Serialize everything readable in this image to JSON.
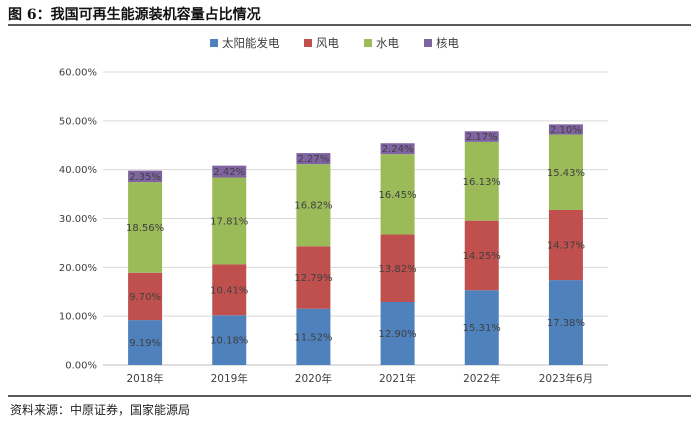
{
  "figure_title": "图 6：我国可再生能源装机容量占比情况",
  "source_note": "资料来源：中原证券，国家能源局",
  "colors": {
    "solar": "#4f81bd",
    "wind": "#c0504d",
    "hydro": "#9bbb59",
    "nuclear": "#8064a2"
  },
  "chart_data": {
    "type": "bar",
    "stacked": true,
    "title": "",
    "xlabel": "",
    "ylabel": "",
    "ylim": [
      0,
      60
    ],
    "yticks": [
      0,
      10,
      20,
      30,
      40,
      50,
      60
    ],
    "ytick_labels": [
      "0.00%",
      "10.00%",
      "20.00%",
      "30.00%",
      "40.00%",
      "50.00%",
      "60.00%"
    ],
    "grid": true,
    "legend_position": "top-center",
    "categories": [
      "2018年",
      "2019年",
      "2020年",
      "2021年",
      "2022年",
      "2023年6月"
    ],
    "series": [
      {
        "key": "solar",
        "name": "太阳能发电",
        "values": [
          9.19,
          10.18,
          11.52,
          12.9,
          15.31,
          17.38
        ],
        "labels": [
          "9.19%",
          "10.18%",
          "11.52%",
          "12.90%",
          "15.31%",
          "17.38%"
        ]
      },
      {
        "key": "wind",
        "name": "风电",
        "values": [
          9.7,
          10.41,
          12.79,
          13.82,
          14.25,
          14.37
        ],
        "labels": [
          "9.70%",
          "10.41%",
          "12.79%",
          "13.82%",
          "14.25%",
          "14.37%"
        ]
      },
      {
        "key": "hydro",
        "name": "水电",
        "values": [
          18.56,
          17.81,
          16.82,
          16.45,
          16.13,
          15.43
        ],
        "labels": [
          "18.56%",
          "17.81%",
          "16.82%",
          "16.45%",
          "16.13%",
          "15.43%"
        ]
      },
      {
        "key": "nuclear",
        "name": "核电",
        "values": [
          2.35,
          2.42,
          2.27,
          2.24,
          2.17,
          2.1
        ],
        "labels": [
          "2.35%",
          "2.42%",
          "2.27%",
          "2.24%",
          "2.17%",
          "2.10%"
        ]
      }
    ]
  }
}
